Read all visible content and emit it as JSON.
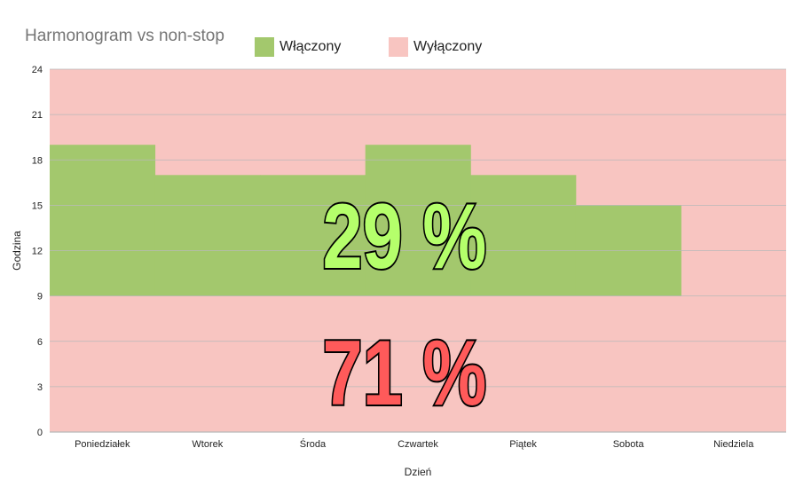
{
  "chart_data": {
    "type": "area",
    "title": "Harmonogram vs non-stop",
    "xlabel": "Dzień",
    "ylabel": "Godzina",
    "ylim": [
      0,
      24
    ],
    "yticks": [
      0,
      3,
      6,
      9,
      12,
      15,
      18,
      21,
      24
    ],
    "categories": [
      "Poniedziałek",
      "Wtorek",
      "Środa",
      "Czwartek",
      "Piątek",
      "Sobota",
      "Niedziela"
    ],
    "series": [
      {
        "name": "Włączony",
        "color": "#a3c86d",
        "start": [
          9,
          9,
          9,
          9,
          9,
          9,
          null
        ],
        "end": [
          19,
          17,
          17,
          19,
          17,
          15,
          null
        ]
      },
      {
        "name": "Wyłączony",
        "color": "#f8c5c1"
      }
    ],
    "legend_position": "top",
    "grid": true,
    "annotations": [
      {
        "text": "29 %",
        "color": "#b5ff6b"
      },
      {
        "text": "71 %",
        "color": "#ff5a5a"
      }
    ]
  }
}
